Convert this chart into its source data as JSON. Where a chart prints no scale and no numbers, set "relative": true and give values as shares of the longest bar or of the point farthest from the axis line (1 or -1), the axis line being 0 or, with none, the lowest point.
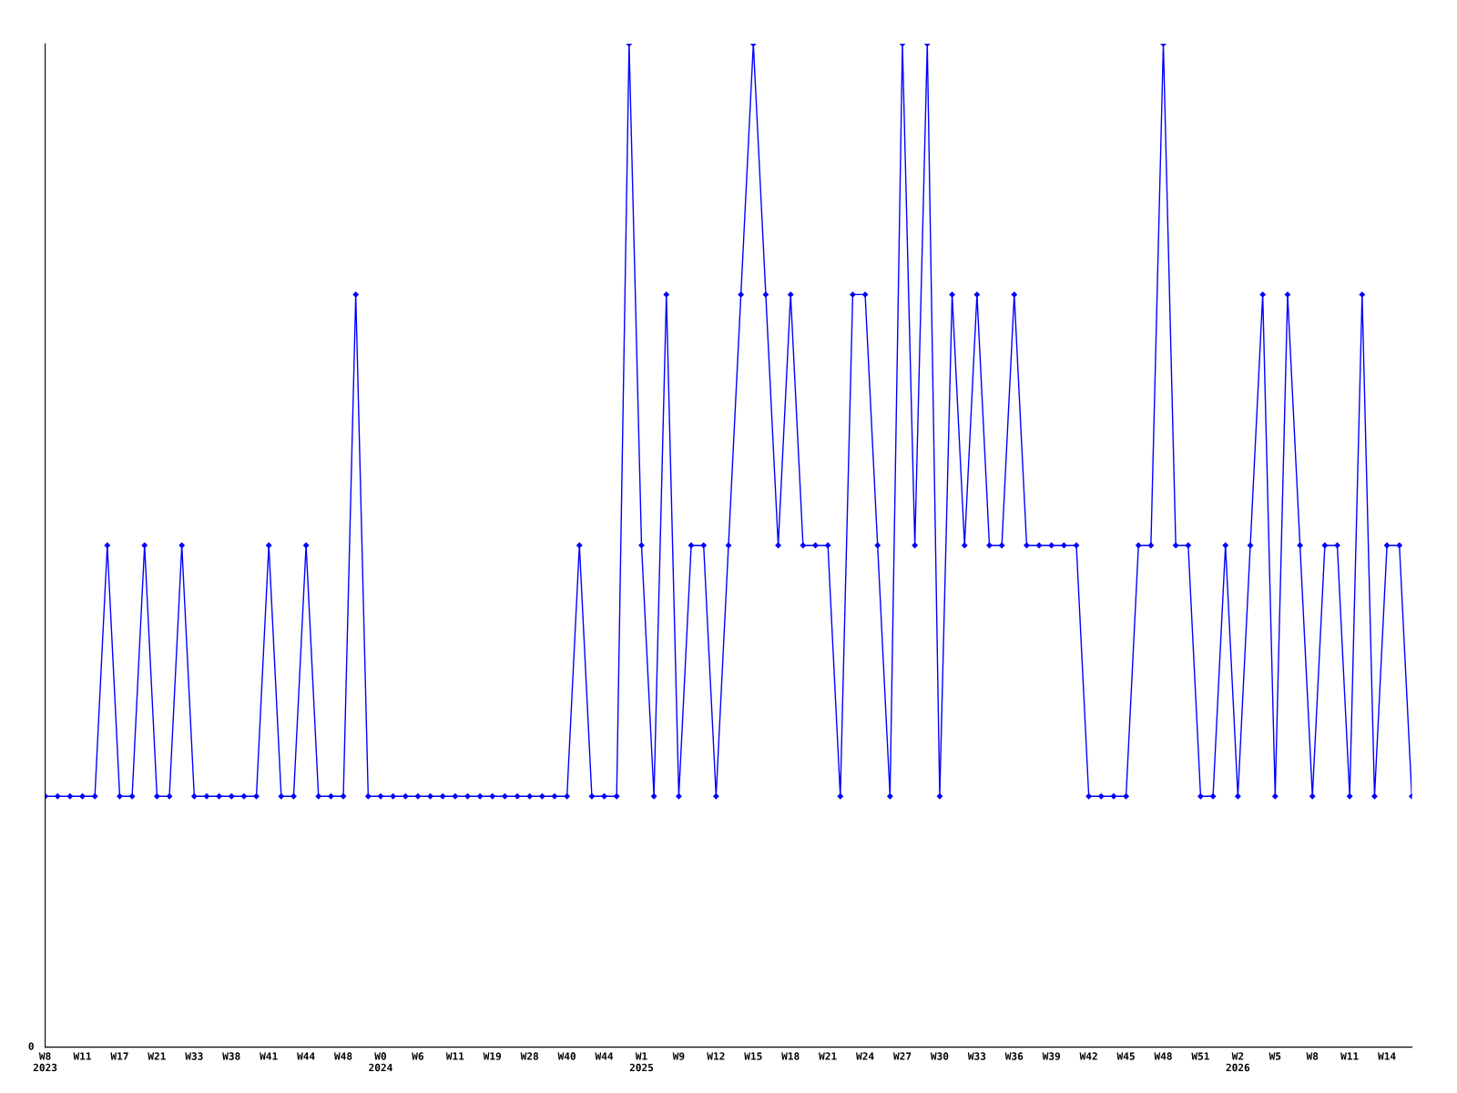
{
  "chart_data": {
    "type": "line",
    "relative": true,
    "marker": "diamond",
    "grid": false,
    "legend": false,
    "categories": [
      "W8\n2023",
      null,
      null,
      "W11",
      null,
      null,
      "W17",
      null,
      null,
      "W21",
      null,
      null,
      "W33",
      null,
      null,
      "W38",
      null,
      null,
      "W41",
      null,
      null,
      "W44",
      null,
      null,
      "W48",
      null,
      null,
      "W0\n2024",
      null,
      null,
      "W6",
      null,
      null,
      "W11",
      null,
      null,
      "W19",
      null,
      null,
      "W28",
      null,
      null,
      "W40",
      null,
      null,
      "W44",
      null,
      null,
      "W1\n2025",
      null,
      null,
      "W9",
      null,
      null,
      "W12",
      null,
      null,
      "W15",
      null,
      null,
      "W18",
      null,
      null,
      "W21",
      null,
      null,
      "W24",
      null,
      null,
      "W27",
      null,
      null,
      "W30",
      null,
      null,
      "W33",
      null,
      null,
      "W36",
      null,
      null,
      "W39",
      null,
      null,
      "W42",
      null,
      null,
      "W45",
      null,
      null,
      "W48",
      null,
      null,
      "W51",
      null,
      null,
      "W2\n2026",
      null,
      null,
      "W5",
      null,
      null,
      "W8",
      null,
      null,
      "W11",
      null,
      null,
      "W14",
      null,
      null
    ],
    "series": [
      {
        "color": "#0000ff",
        "values": [
          0.25,
          0.25,
          0.25,
          0.25,
          0.25,
          0.5,
          0.25,
          0.25,
          0.5,
          0.25,
          0.25,
          0.5,
          0.25,
          0.25,
          0.25,
          0.25,
          0.25,
          0.25,
          0.5,
          0.25,
          0.25,
          0.5,
          0.25,
          0.25,
          0.25,
          0.75,
          0.25,
          0.25,
          0.25,
          0.25,
          0.25,
          0.25,
          0.25,
          0.25,
          0.25,
          0.25,
          0.25,
          0.25,
          0.25,
          0.25,
          0.25,
          0.25,
          0.25,
          0.5,
          0.25,
          0.25,
          0.25,
          1,
          0.5,
          0.25,
          0.75,
          0.25,
          0.5,
          0.5,
          0.25,
          0.5,
          0.75,
          1,
          0.75,
          0.5,
          0.75,
          0.5,
          0.5,
          0.5,
          0.25,
          0.75,
          0.75,
          0.5,
          0.25,
          1,
          0.5,
          1,
          0.25,
          0.75,
          0.5,
          0.75,
          0.5,
          0.5,
          0.75,
          0.5,
          0.5,
          0.5,
          0.5,
          0.5,
          0.25,
          0.25,
          0.25,
          0.25,
          0.5,
          0.5,
          1,
          0.5,
          0.5,
          0.25,
          0.25,
          0.5,
          0.25,
          0.5,
          0.75,
          0.25,
          0.75,
          0.5,
          0.25,
          0.5,
          0.5,
          0.25,
          0.75,
          0.25,
          0.5,
          0.5,
          0.25
        ]
      }
    ],
    "annotations": [
      "0"
    ]
  }
}
